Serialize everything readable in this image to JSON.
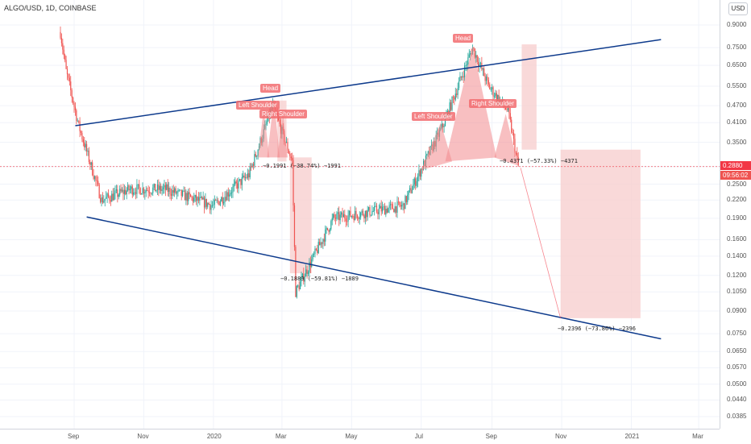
{
  "header": {
    "symbol": "ALGO/USD, 1D, COINBASE",
    "currency_button": "USD"
  },
  "y_axis": {
    "labels": [
      "0.9000",
      "0.7500",
      "0.6500",
      "0.5500",
      "0.4700",
      "0.4100",
      "0.3500",
      "0.2880",
      "0.2500",
      "0.2200",
      "0.1900",
      "0.1600",
      "0.1400",
      "0.1200",
      "0.1050",
      "0.0900",
      "0.0750",
      "0.0650",
      "0.0570",
      "0.0500",
      "0.0440",
      "0.0385"
    ],
    "values": [
      0.9,
      0.75,
      0.65,
      0.55,
      0.47,
      0.41,
      0.35,
      0.288,
      0.25,
      0.22,
      0.19,
      0.16,
      0.14,
      0.12,
      0.105,
      0.09,
      0.075,
      0.065,
      0.057,
      0.05,
      0.044,
      0.0385
    ],
    "last_price": "0.2880",
    "countdown": "09:56:02"
  },
  "x_axis": {
    "labels": [
      "Sep",
      "Nov",
      "2020",
      "Mar",
      "May",
      "Jul",
      "Sep",
      "Nov",
      "2021",
      "Mar"
    ]
  },
  "annotations": {
    "pattern_1": {
      "left_shoulder": "Left Shoulder",
      "head": "Head",
      "right_shoulder": "Right Shoulder"
    },
    "pattern_2": {
      "left_shoulder": "Left Shoulder",
      "head": "Head",
      "right_shoulder": "Right Shoulder"
    },
    "measures": [
      "−0.1991 (−38.74%) −1991",
      "−0.1889 (−59.81%) −1889",
      "−0.4371 (−57.33%) −4371",
      "−0.2396 (−73.86%) −2396"
    ]
  },
  "colors": {
    "trendline": "#0d3a8c",
    "up_candle": "#26a69a",
    "down_candle": "#ef5350",
    "pattern_fill": "#f28b8e",
    "measure_box": "#f8cfcf",
    "price_line": "#f23645"
  },
  "chart_data": {
    "type": "candlestick",
    "title": "ALGO/USD, 1D, COINBASE",
    "scale": "log",
    "ylim": [
      0.0385,
      0.9
    ],
    "approx_close_path": [
      [
        "2019-08-20",
        0.85
      ],
      [
        "2019-08-25",
        0.62
      ],
      [
        "2019-09-05",
        0.4
      ],
      [
        "2019-09-25",
        0.22
      ],
      [
        "2019-10-20",
        0.24
      ],
      [
        "2019-11-20",
        0.24
      ],
      [
        "2020-01-01",
        0.21
      ],
      [
        "2020-02-01",
        0.27
      ],
      [
        "2020-02-22",
        0.47
      ],
      [
        "2020-03-10",
        0.3
      ],
      [
        "2020-03-13",
        0.105
      ],
      [
        "2020-04-15",
        0.19
      ],
      [
        "2020-06-15",
        0.21
      ],
      [
        "2020-07-20",
        0.4
      ],
      [
        "2020-08-15",
        0.75
      ],
      [
        "2020-08-29",
        0.55
      ],
      [
        "2020-09-15",
        0.45
      ],
      [
        "2020-09-24",
        0.288
      ]
    ]
  }
}
